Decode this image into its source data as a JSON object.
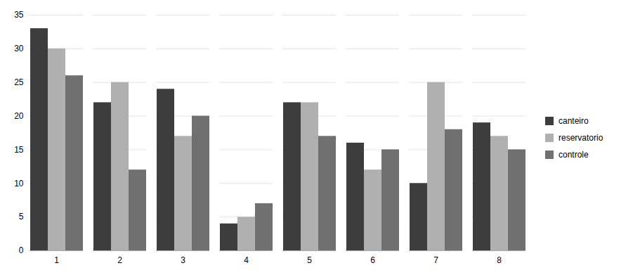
{
  "chart_data": {
    "type": "bar",
    "categories": [
      1,
      2,
      3,
      4,
      5,
      6,
      7,
      8
    ],
    "series": [
      {
        "name": "canteiro",
        "color": "#3d3d3d",
        "values": [
          33,
          22,
          24,
          4,
          22,
          16,
          10,
          19
        ]
      },
      {
        "name": "reservatorio",
        "color": "#b0b0b0",
        "values": [
          30,
          25,
          17,
          5,
          22,
          12,
          25,
          17
        ]
      },
      {
        "name": "controle",
        "color": "#707070",
        "values": [
          26,
          12,
          20,
          7,
          17,
          15,
          18,
          15
        ]
      }
    ],
    "ylim": [
      0,
      35
    ],
    "yticks": [
      0,
      5,
      10,
      15,
      20,
      25,
      30,
      35
    ],
    "grid": true,
    "legend": "right"
  }
}
